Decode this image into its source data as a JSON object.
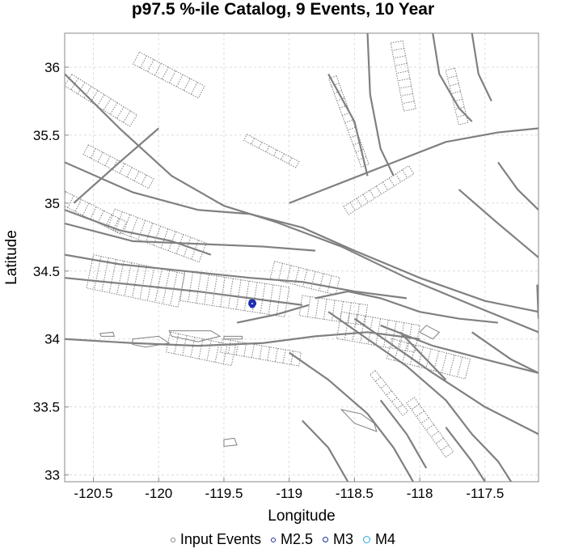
{
  "chart_data": {
    "type": "scatter",
    "title": "p97.5 %-ile Catalog, 9 Events, 10 Year",
    "xlabel": "Longitude",
    "ylabel": "Latitude",
    "xlim": [
      -120.72,
      -117.09
    ],
    "ylim": [
      32.95,
      36.25
    ],
    "x_ticks": [
      -120.5,
      -120,
      -119.5,
      -119,
      -118.5,
      -118,
      -117.5
    ],
    "x_tick_labels": [
      "-120.5",
      "-120",
      "-119.5",
      "-119",
      "-118.5",
      "-118",
      "-117.5"
    ],
    "y_ticks": [
      33,
      33.5,
      34,
      34.5,
      35,
      35.5,
      36
    ],
    "y_tick_labels": [
      "33",
      "33.5",
      "34",
      "34.5",
      "35",
      "35.5",
      "36"
    ],
    "grid": true,
    "legend_position": "bottom",
    "legend": [
      {
        "label": "Input Events",
        "color": "#888888"
      },
      {
        "label": "M2.5",
        "color": "#1f2f9c"
      },
      {
        "label": "M3",
        "color": "#1f2f9c"
      },
      {
        "label": "M4",
        "color": "#2aa8e0"
      }
    ],
    "series": [
      {
        "color": "#1f2fb0",
        "points": [
          {
            "x": -119.285,
            "y": 34.265
          },
          {
            "x": -119.28,
            "y": 34.255
          },
          {
            "x": -119.29,
            "y": 34.26
          },
          {
            "x": -119.275,
            "y": 34.262
          },
          {
            "x": -119.283,
            "y": 34.25
          },
          {
            "x": -119.288,
            "y": 34.27
          },
          {
            "x": -119.278,
            "y": 34.268
          },
          {
            "x": -119.282,
            "y": 34.258
          },
          {
            "x": -119.286,
            "y": 34.254
          }
        ]
      }
    ],
    "fault_color": "#808080",
    "fault_traces": [
      [
        [
          -120.72,
          35.95
        ],
        [
          -120.3,
          35.55
        ],
        [
          -119.9,
          35.2
        ],
        [
          -119.5,
          34.98
        ],
        [
          -119.1,
          34.86
        ],
        [
          -118.6,
          34.68
        ],
        [
          -118.1,
          34.45
        ],
        [
          -117.6,
          34.25
        ],
        [
          -117.09,
          34.05
        ]
      ],
      [
        [
          -120.72,
          35.3
        ],
        [
          -120.2,
          35.08
        ],
        [
          -119.7,
          34.95
        ],
        [
          -119.3,
          34.92
        ],
        [
          -118.9,
          34.82
        ],
        [
          -118.5,
          34.65
        ],
        [
          -118.0,
          34.45
        ],
        [
          -117.5,
          34.28
        ],
        [
          -117.09,
          34.2
        ]
      ],
      [
        [
          -120.72,
          34.85
        ],
        [
          -120.2,
          34.72
        ],
        [
          -119.7,
          34.7
        ],
        [
          -119.2,
          34.68
        ],
        [
          -118.8,
          34.65
        ]
      ],
      [
        [
          -120.72,
          34.62
        ],
        [
          -120.3,
          34.55
        ],
        [
          -119.8,
          34.5
        ],
        [
          -119.3,
          34.45
        ],
        [
          -118.9,
          34.42
        ],
        [
          -118.5,
          34.35
        ],
        [
          -118.1,
          34.3
        ]
      ],
      [
        [
          -120.72,
          34.45
        ],
        [
          -120.2,
          34.4
        ],
        [
          -119.7,
          34.35
        ],
        [
          -119.3,
          34.3
        ],
        [
          -118.9,
          34.25
        ]
      ],
      [
        [
          -120.72,
          34.0
        ],
        [
          -120.2,
          33.97
        ],
        [
          -119.7,
          33.95
        ],
        [
          -119.2,
          33.97
        ],
        [
          -118.8,
          34.02
        ],
        [
          -118.4,
          34.05
        ],
        [
          -118.0,
          34.0
        ]
      ],
      [
        [
          -119.0,
          35.0
        ],
        [
          -118.6,
          35.15
        ],
        [
          -118.2,
          35.3
        ],
        [
          -117.8,
          35.45
        ],
        [
          -117.4,
          35.52
        ],
        [
          -117.09,
          35.55
        ]
      ],
      [
        [
          -118.4,
          36.25
        ],
        [
          -118.38,
          35.8
        ],
        [
          -118.3,
          35.4
        ],
        [
          -118.2,
          35.2
        ]
      ],
      [
        [
          -117.9,
          36.25
        ],
        [
          -117.85,
          35.95
        ],
        [
          -117.7,
          35.7
        ],
        [
          -117.6,
          35.6
        ]
      ],
      [
        [
          -117.4,
          35.3
        ],
        [
          -117.25,
          35.1
        ],
        [
          -117.09,
          34.95
        ]
      ],
      [
        [
          -117.7,
          35.1
        ],
        [
          -117.4,
          34.85
        ],
        [
          -117.09,
          34.6
        ]
      ],
      [
        [
          -118.7,
          34.2
        ],
        [
          -118.4,
          34.0
        ],
        [
          -118.1,
          33.8
        ],
        [
          -117.8,
          33.55
        ],
        [
          -117.6,
          33.3
        ],
        [
          -117.4,
          33.1
        ],
        [
          -117.3,
          32.95
        ]
      ],
      [
        [
          -118.5,
          34.15
        ],
        [
          -118.2,
          33.95
        ],
        [
          -117.9,
          33.75
        ],
        [
          -117.5,
          33.5
        ],
        [
          -117.09,
          33.3
        ]
      ],
      [
        [
          -118.3,
          34.1
        ],
        [
          -117.9,
          33.95
        ],
        [
          -117.5,
          33.85
        ],
        [
          -117.09,
          33.75
        ]
      ],
      [
        [
          -119.0,
          33.9
        ],
        [
          -118.7,
          33.7
        ],
        [
          -118.4,
          33.45
        ],
        [
          -118.2,
          33.2
        ],
        [
          -118.05,
          32.95
        ]
      ],
      [
        [
          -118.9,
          33.4
        ],
        [
          -118.7,
          33.2
        ],
        [
          -118.55,
          32.95
        ]
      ],
      [
        [
          -118.3,
          33.55
        ],
        [
          -118.1,
          33.3
        ],
        [
          -117.95,
          33.05
        ]
      ],
      [
        [
          -117.8,
          33.35
        ],
        [
          -117.6,
          33.1
        ],
        [
          -117.5,
          32.95
        ]
      ],
      [
        [
          -117.6,
          34.05
        ],
        [
          -117.3,
          33.85
        ],
        [
          -117.09,
          33.75
        ]
      ],
      [
        [
          -117.1,
          34.4
        ],
        [
          -117.09,
          34.15
        ]
      ],
      [
        [
          -120.72,
          34.95
        ],
        [
          -120.3,
          34.8
        ],
        [
          -119.9,
          34.72
        ],
        [
          -119.6,
          34.62
        ]
      ],
      [
        [
          -120.65,
          35.0
        ],
        [
          -120.3,
          35.3
        ],
        [
          -120.0,
          35.55
        ]
      ],
      [
        [
          -118.8,
          34.3
        ],
        [
          -118.55,
          34.35
        ],
        [
          -118.3,
          34.3
        ],
        [
          -118.0,
          34.2
        ],
        [
          -117.7,
          34.15
        ],
        [
          -117.4,
          34.12
        ]
      ],
      [
        [
          -119.4,
          34.12
        ],
        [
          -119.1,
          34.18
        ],
        [
          -118.85,
          34.25
        ]
      ],
      [
        [
          -118.15,
          34.05
        ],
        [
          -117.95,
          33.85
        ],
        [
          -117.8,
          33.7
        ]
      ],
      [
        [
          -118.7,
          35.95
        ],
        [
          -118.5,
          35.6
        ],
        [
          -118.4,
          35.2
        ]
      ],
      [
        [
          -117.6,
          36.25
        ],
        [
          -117.55,
          35.95
        ],
        [
          -117.45,
          35.75
        ]
      ]
    ],
    "dotted_segments": [
      {
        "a": [
          [
            -120.6,
            36.05
          ],
          [
            -120.1,
            35.75
          ]
        ],
        "w": [
          0.12,
          0.22
        ]
      },
      {
        "a": [
          [
            -120.1,
            36.2
          ],
          [
            -119.6,
            35.95
          ]
        ],
        "w": [
          0.1,
          0.2
        ]
      },
      {
        "a": [
          [
            -120.5,
            35.5
          ],
          [
            -120.0,
            35.25
          ]
        ],
        "w": [
          0.08,
          0.16
        ]
      },
      {
        "a": [
          [
            -120.72,
            35.2
          ],
          [
            -120.2,
            34.95
          ]
        ],
        "w": [
          0.1,
          0.2
        ]
      },
      {
        "a": [
          [
            -120.3,
            35.05
          ],
          [
            -119.6,
            34.8
          ]
        ],
        "w": [
          0.1,
          0.25
        ]
      },
      {
        "a": [
          [
            -120.5,
            34.62
          ],
          [
            -119.8,
            34.48
          ]
        ],
        "w": [
          0.0,
          0.25
        ]
      },
      {
        "a": [
          [
            -119.8,
            34.5
          ],
          [
            -119.0,
            34.38
          ]
        ],
        "w": [
          0.0,
          0.22
        ]
      },
      {
        "a": [
          [
            -119.9,
            34.1
          ],
          [
            -119.4,
            34.0
          ]
        ],
        "w": [
          0.05,
          0.2
        ]
      },
      {
        "a": [
          [
            -119.5,
            34.05
          ],
          [
            -118.9,
            33.95
          ]
        ],
        "w": [
          0.05,
          0.15
        ]
      },
      {
        "a": [
          [
            -119.1,
            34.62
          ],
          [
            -118.6,
            34.5
          ]
        ],
        "w": [
          0.05,
          0.18
        ]
      },
      {
        "a": [
          [
            -118.9,
            34.32
          ],
          [
            -118.4,
            34.25
          ]
        ],
        "w": [
          0.0,
          0.15
        ]
      },
      {
        "a": [
          [
            -118.6,
            34.2
          ],
          [
            -118.0,
            34.1
          ]
        ],
        "w": [
          0.0,
          0.2
        ]
      },
      {
        "a": [
          [
            -118.2,
            34.05
          ],
          [
            -117.6,
            33.9
          ]
        ],
        "w": [
          0.05,
          0.2
        ]
      },
      {
        "a": [
          [
            -118.6,
            35.95
          ],
          [
            -118.35,
            35.3
          ]
        ],
        "w": [
          0.04,
          0.1
        ]
      },
      {
        "a": [
          [
            -118.1,
            36.2
          ],
          [
            -118.0,
            35.7
          ]
        ],
        "w": [
          0.03,
          0.12
        ]
      },
      {
        "a": [
          [
            -117.7,
            36.0
          ],
          [
            -117.6,
            35.6
          ]
        ],
        "w": [
          0.03,
          0.1
        ]
      },
      {
        "a": [
          [
            -118.6,
            35.0
          ],
          [
            -118.1,
            35.3
          ]
        ],
        "w": [
          0.03,
          0.1
        ]
      },
      {
        "a": [
          [
            -118.0,
            33.6
          ],
          [
            -117.7,
            33.2
          ]
        ],
        "w": [
          0.05,
          0.12
        ]
      },
      {
        "a": [
          [
            -118.3,
            33.8
          ],
          [
            -118.05,
            33.5
          ]
        ],
        "w": [
          0.05,
          0.1
        ]
      },
      {
        "a": [
          [
            -119.3,
            35.55
          ],
          [
            -118.9,
            35.35
          ]
        ],
        "w": [
          0.05,
          0.1
        ]
      }
    ],
    "islands": [
      [
        [
          -120.45,
          34.04
        ],
        [
          -120.35,
          34.05
        ],
        [
          -120.34,
          34.02
        ],
        [
          -120.44,
          34.02
        ]
      ],
      [
        [
          -120.2,
          34.0
        ],
        [
          -120.0,
          34.02
        ],
        [
          -119.92,
          33.97
        ],
        [
          -120.1,
          33.94
        ],
        [
          -120.2,
          33.96
        ]
      ],
      [
        [
          -119.92,
          34.06
        ],
        [
          -119.6,
          34.06
        ],
        [
          -119.53,
          34.02
        ],
        [
          -119.7,
          33.98
        ],
        [
          -119.9,
          34.02
        ]
      ],
      [
        [
          -119.5,
          34.02
        ],
        [
          -119.36,
          34.02
        ],
        [
          -119.36,
          34.0
        ],
        [
          -119.5,
          34.0
        ]
      ],
      [
        [
          -118.6,
          33.48
        ],
        [
          -118.45,
          33.45
        ],
        [
          -118.35,
          33.38
        ],
        [
          -118.33,
          33.32
        ],
        [
          -118.5,
          33.38
        ]
      ],
      [
        [
          -119.5,
          33.26
        ],
        [
          -119.42,
          33.27
        ],
        [
          -119.4,
          33.22
        ],
        [
          -119.5,
          33.21
        ]
      ],
      [
        [
          -118.0,
          34.05
        ],
        [
          -117.95,
          34.1
        ],
        [
          -117.85,
          34.05
        ],
        [
          -117.9,
          34.0
        ]
      ]
    ]
  }
}
